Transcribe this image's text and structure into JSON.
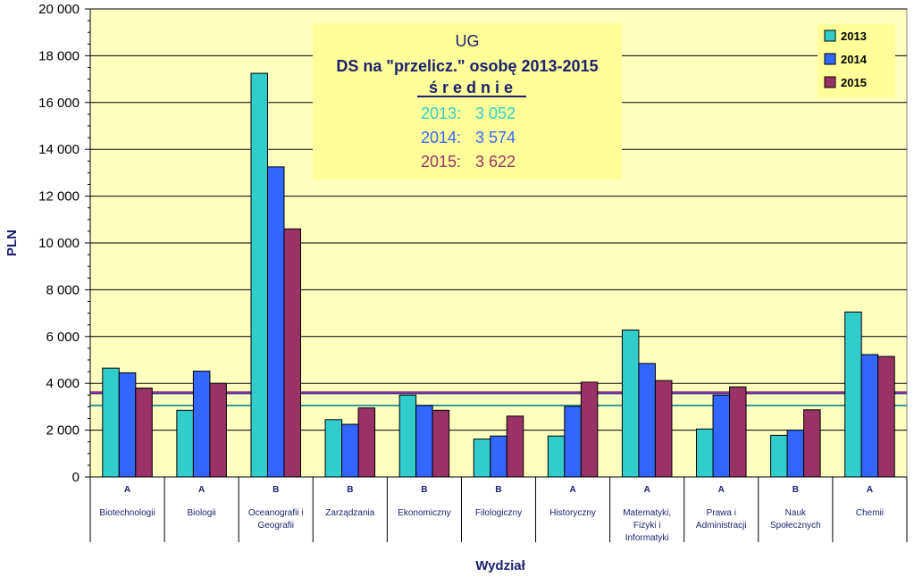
{
  "chart_data": {
    "type": "bar",
    "title": "UG",
    "subtitle": "DS na \"przelicz.\" osobę 2013-2015",
    "xlabel": "Wydział",
    "ylabel": "PLN",
    "ylim": [
      0,
      20000
    ],
    "y_ticks": [
      "0",
      "2 000",
      "4 000",
      "6 000",
      "8 000",
      "10 000",
      "12 000",
      "14 000",
      "16 000",
      "18 000",
      "20 000"
    ],
    "grid": true,
    "legend_position": "top-right",
    "background_color": "#ffffc0",
    "categories": [
      "Biotechnologii",
      "Biologii",
      "Oceanografii i Geografii",
      "Zarządzania",
      "Ekonomiczny",
      "Filologiczny",
      "Historyczny",
      "Matematyki, Fizyki i Informatyki",
      "Prawa i Administracji",
      "Nauk Społecznych",
      "Chemii"
    ],
    "category_lines": [
      [
        "Biotechnologii"
      ],
      [
        "Biologii"
      ],
      [
        "Oceanografii i",
        "Geografii"
      ],
      [
        "Zarządzania"
      ],
      [
        "Ekonomiczny"
      ],
      [
        "Filologiczny"
      ],
      [
        "Historyczny"
      ],
      [
        "Matematyki,",
        "Fizyki i",
        "Informatyki"
      ],
      [
        "Prawa i",
        "Administracji"
      ],
      [
        "Nauk",
        "Społecznych"
      ],
      [
        "Chemii"
      ]
    ],
    "groups": [
      "A",
      "A",
      "B",
      "B",
      "B",
      "B",
      "A",
      "A",
      "A",
      "B",
      "A"
    ],
    "series": [
      {
        "name": "2013",
        "color": "#33cccc",
        "values": [
          4650,
          2850,
          17250,
          2450,
          3500,
          1620,
          1750,
          6280,
          2050,
          1780,
          7050
        ]
      },
      {
        "name": "2014",
        "color": "#3366ff",
        "values": [
          4450,
          4520,
          13250,
          2250,
          3050,
          1750,
          3020,
          4850,
          3500,
          2000,
          5230
        ]
      },
      {
        "name": "2015",
        "color": "#993366",
        "values": [
          3800,
          4000,
          10600,
          2950,
          2850,
          2600,
          4050,
          4120,
          3850,
          2870,
          5150
        ]
      }
    ],
    "average_label": "ś r e d n i e",
    "averages": [
      {
        "label": "2013:",
        "value": "3 052",
        "numeric": 3052,
        "color": "#33cccc",
        "line_color": "#339999"
      },
      {
        "label": "2014:",
        "value": "3 574",
        "numeric": 3574,
        "color": "#3366ff",
        "line_color": "#3333cc"
      },
      {
        "label": "2015:",
        "value": "3 622",
        "numeric": 3622,
        "color": "#993366",
        "line_color": "#993366"
      }
    ]
  }
}
